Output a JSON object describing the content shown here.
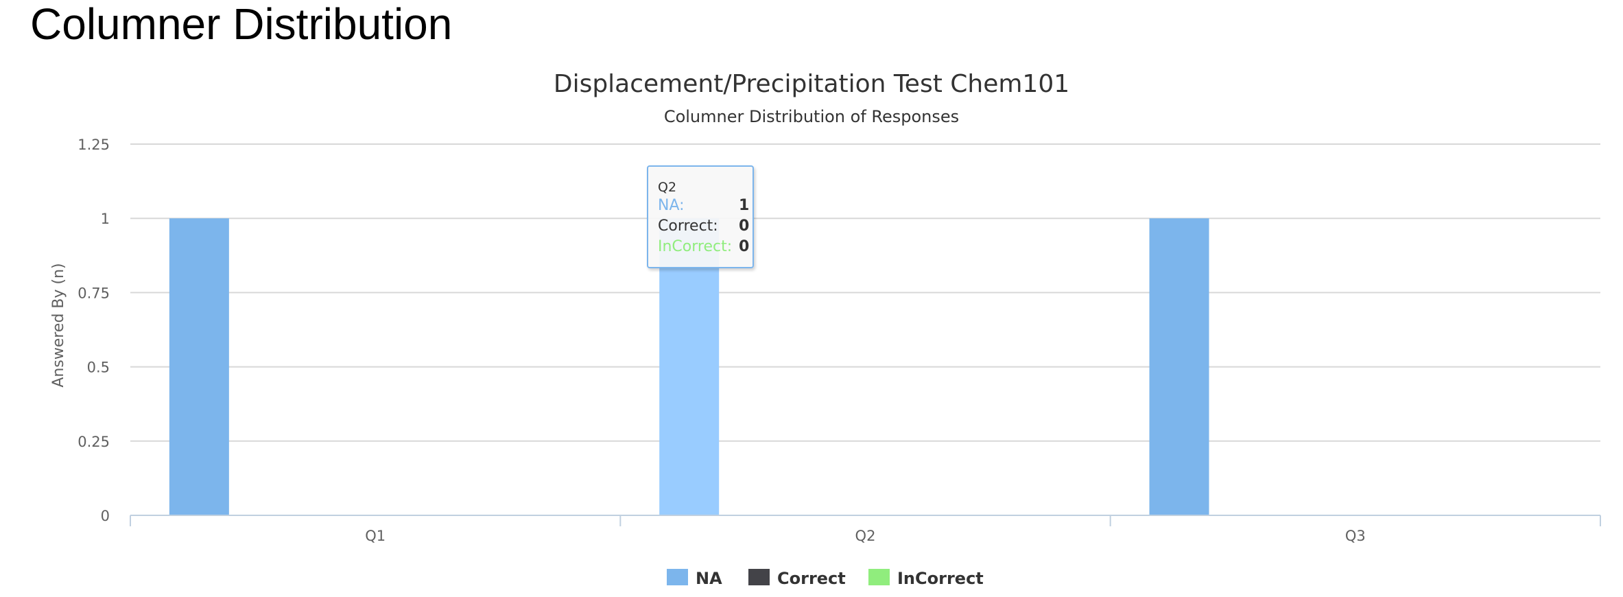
{
  "page": {
    "heading": "Columner Distribution"
  },
  "chart_data": {
    "type": "bar",
    "title": "Displacement/Precipitation Test Chem101",
    "subtitle": "Columner Distribution of Responses",
    "ylabel": "Answered By (n)",
    "xlabel": "",
    "ylim": [
      0,
      1.25
    ],
    "yticks": [
      "0",
      "0.25",
      "0.5",
      "0.75",
      "1",
      "1.25"
    ],
    "categories": [
      "Q1",
      "Q2",
      "Q3"
    ],
    "series": [
      {
        "name": "NA",
        "color": "#7cb5ec",
        "values": [
          1,
          1,
          1
        ]
      },
      {
        "name": "Correct",
        "color": "#434348",
        "values": [
          0,
          0,
          0
        ]
      },
      {
        "name": "InCorrect",
        "color": "#90ed7d",
        "values": [
          0,
          0,
          0
        ]
      }
    ],
    "highlighted_category": "Q2",
    "highlight_color": "#99ccff",
    "legend_position": "bottom-center",
    "grid": true
  },
  "tooltip": {
    "header": "Q2",
    "rows": [
      {
        "label": "NA:",
        "value": "1",
        "color": "#7cb5ec"
      },
      {
        "label": "Correct:",
        "value": "0",
        "color": "#333333"
      },
      {
        "label": "InCorrect:",
        "value": "0",
        "color": "#90ed7d"
      }
    ]
  }
}
